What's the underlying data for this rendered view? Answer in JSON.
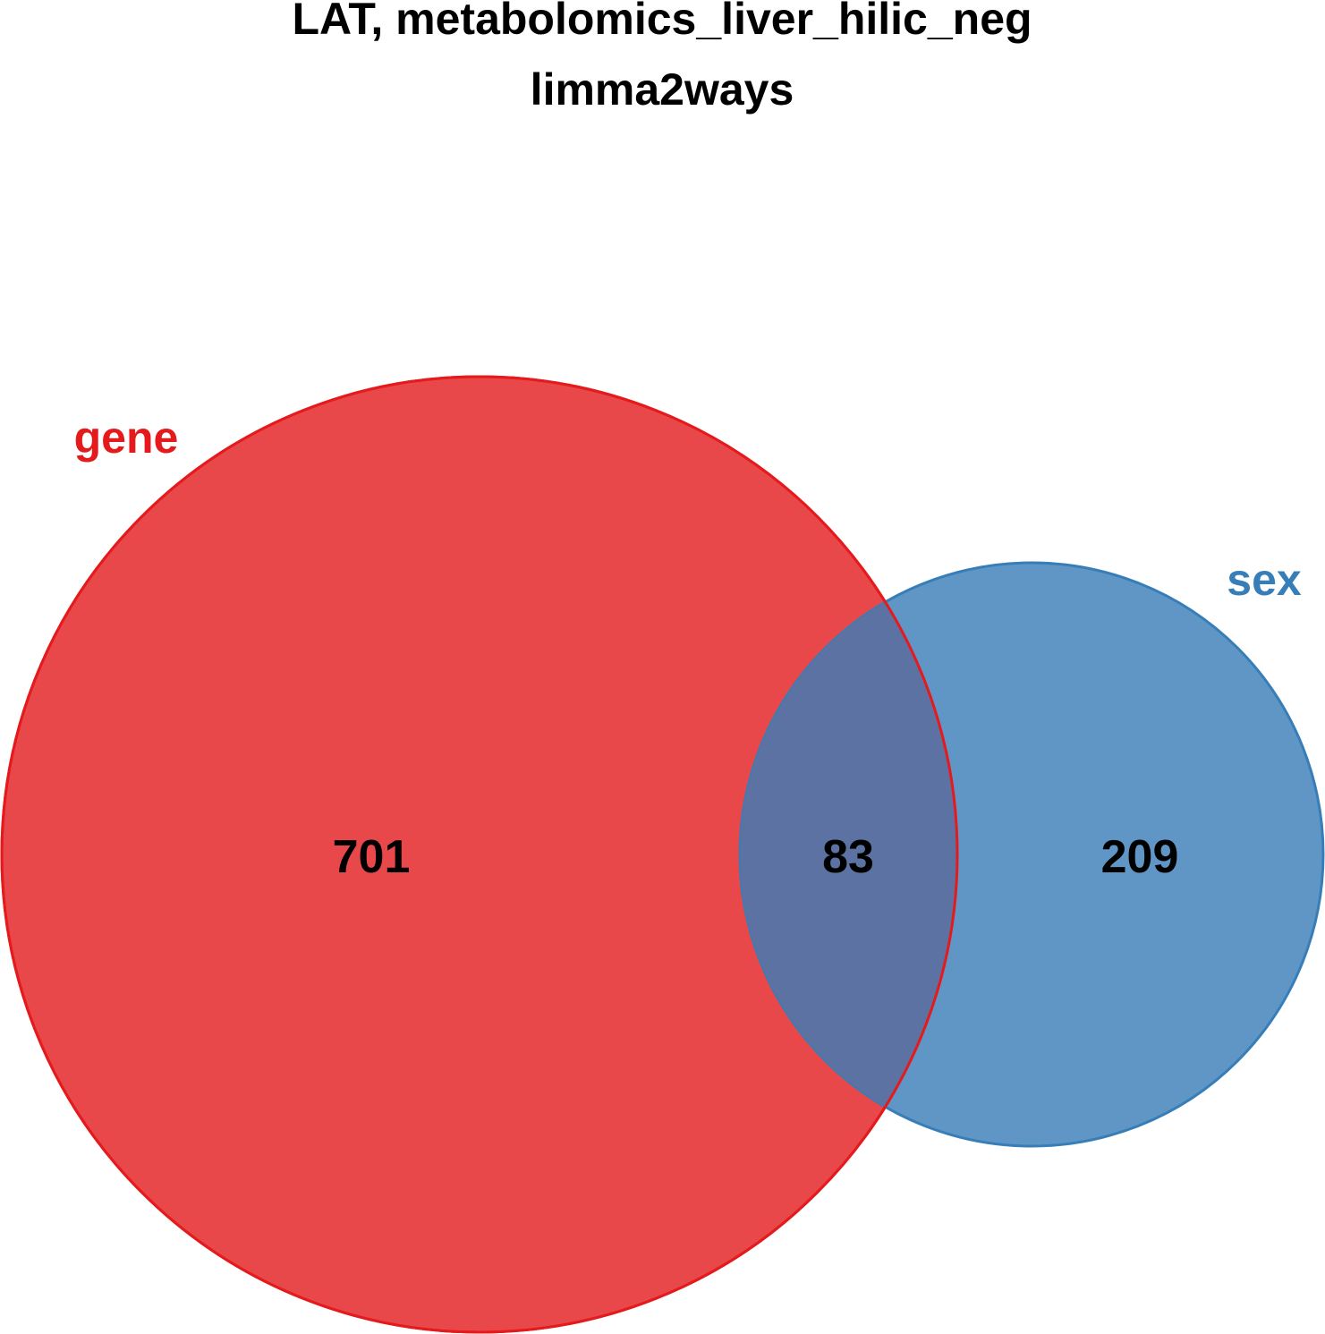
{
  "title": {
    "line1": "LAT, metabolomics_liver_hilic_neg",
    "line2": "limma2ways"
  },
  "sets": [
    {
      "name": "gene",
      "color": "#E41A1C",
      "fill": "#E8484A"
    },
    {
      "name": "sex",
      "color": "#377EB8",
      "fill": "#5F96C5"
    }
  ],
  "regions": {
    "gene_only": "701",
    "intersection": "83",
    "sex_only": "209"
  },
  "intersection_color": "#5B72A2"
}
